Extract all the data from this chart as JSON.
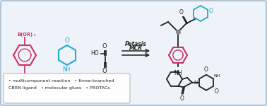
{
  "background_color": "#dde8f0",
  "inner_bg_color": "#edf3f8",
  "border_color": "#aabccc",
  "petasis_text_line1": "Petasis",
  "petasis_text_line2": "MCR",
  "bullet_line1": "• multicomponent reaction   • three-branched",
  "bullet_line2": "CBRN ligand   • molecular glues   • PROTACs",
  "pink": "#cc3366",
  "cyan": "#22aacc",
  "dark": "#222222",
  "gray": "#888888",
  "figsize": [
    3.78,
    1.5
  ],
  "dpi": 100
}
